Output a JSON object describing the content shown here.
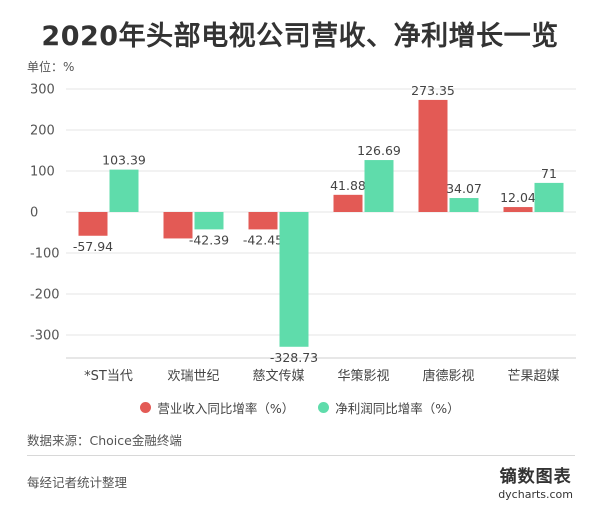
{
  "title": "2020年头部电视公司营收、净利增长一览",
  "unit_label": "单位：%",
  "legend": {
    "revenue": "营业收入同比增率（%）",
    "profit": "净利润同比增率（%）"
  },
  "source": "数据来源：Choice金融终端",
  "note": "每经记者统计整理",
  "brand": {
    "name": "镝数图表",
    "url": "dycharts.com"
  },
  "colors": {
    "revenue": "#e35a55",
    "profit": "#5fdcab",
    "grid": "#e6e6e6"
  },
  "chart_data": {
    "type": "bar",
    "categories": [
      "*ST当代",
      "欢瑞世纪",
      "慈文传媒",
      "华策影视",
      "唐德影视",
      "芒果超媒"
    ],
    "series": [
      {
        "name": "营业收入同比增率（%）",
        "values": [
          -57.94,
          -64.5,
          -42.45,
          41.88,
          273.35,
          12.04
        ],
        "labels": [
          "-57.94",
          "",
          "-42.45",
          "41.88",
          "273.35",
          "12.04"
        ]
      },
      {
        "name": "净利润同比增率（%）",
        "values": [
          103.39,
          -42.39,
          -328.73,
          126.69,
          34.07,
          71
        ],
        "labels": [
          "103.39",
          "-42.39",
          "-328.73",
          "126.69",
          "34.07",
          "71"
        ]
      }
    ],
    "ylim": [
      -350,
      300
    ],
    "yticks": [
      300,
      200,
      100,
      0,
      -100,
      -200,
      -300
    ],
    "ytick_labels": [
      "300",
      "200",
      "100",
      "0",
      "-100",
      "-200",
      "-300"
    ],
    "grid": true,
    "legend_position": "bottom"
  }
}
